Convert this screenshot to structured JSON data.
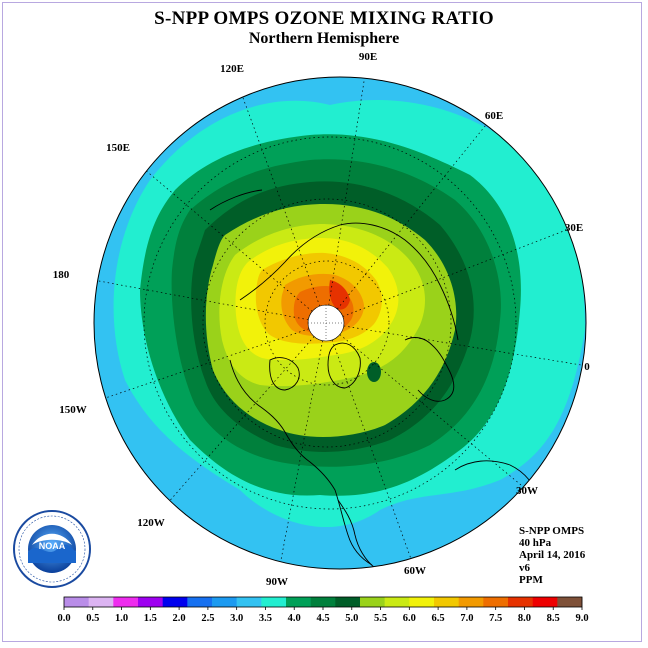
{
  "title": "S-NPP OMPS OZONE MIXING RATIO",
  "subtitle": "Northern Hemisphere",
  "longitude_labels": [
    "90E",
    "60E",
    "30E",
    "0",
    "30W",
    "60W",
    "90W",
    "120W",
    "150W",
    "180",
    "150E",
    "120E"
  ],
  "info": {
    "instrument": "S-NPP OMPS",
    "level": "40 hPa",
    "date": "April 14, 2016",
    "version": "v6",
    "units": "PPM"
  },
  "colorbar": {
    "ticks": [
      "0.0",
      "0.5",
      "1.0",
      "1.5",
      "2.0",
      "2.5",
      "3.0",
      "3.5",
      "4.0",
      "4.5",
      "5.0",
      "5.5",
      "6.0",
      "6.5",
      "7.0",
      "7.5",
      "8.0",
      "8.5",
      "9.0"
    ],
    "colors": [
      "#b98de8",
      "#dcb4f2",
      "#ee2cee",
      "#9e00f0",
      "#0000ee",
      "#1670f0",
      "#1c9af0",
      "#33c2f2",
      "#22eed0",
      "#00a058",
      "#00803c",
      "#005e28",
      "#9ad21a",
      "#caea14",
      "#f2f20a",
      "#f2c800",
      "#f29a00",
      "#ee6e00",
      "#e63200",
      "#ee0000",
      "#7e5038"
    ]
  },
  "logo": {
    "text": "NOAA"
  }
}
